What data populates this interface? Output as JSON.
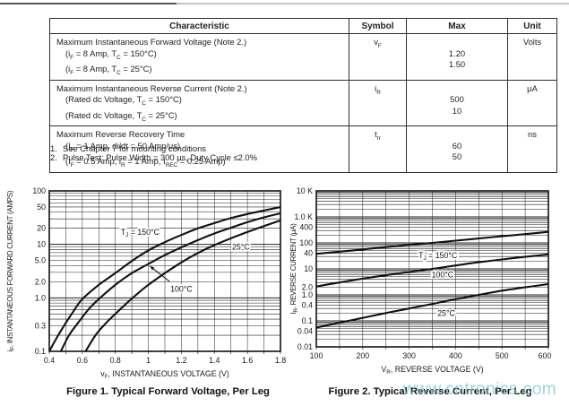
{
  "table": {
    "headers": [
      "Characteristic",
      "Symbol",
      "Max",
      "Unit"
    ],
    "rows": [
      {
        "characteristic": [
          {
            "segs": [
              {
                "t": "Maximum Instantaneous Forward Voltage (Note 2.)"
              }
            ]
          },
          {
            "segs": [
              {
                "t": "(i"
              },
              {
                "s": "F"
              },
              {
                "t": " = 8 Amp, T"
              },
              {
                "s": "C"
              },
              {
                "t": " = 150°C)"
              }
            ]
          },
          {
            "segs": [
              {
                "t": "(i"
              },
              {
                "s": "F"
              },
              {
                "t": " = 8 Amp, T"
              },
              {
                "s": "C"
              },
              {
                "t": " = 25°C)"
              }
            ]
          }
        ],
        "symbol": {
          "segs": [
            {
              "t": "v"
            },
            {
              "s": "F"
            }
          ]
        },
        "max": [
          "",
          "1.20",
          "1.50"
        ],
        "unit": "Volts"
      },
      {
        "characteristic": [
          {
            "segs": [
              {
                "t": "Maximum Instantaneous Reverse Current (Note 2.)"
              }
            ]
          },
          {
            "segs": [
              {
                "t": "(Rated dc Voltage, T"
              },
              {
                "s": "C"
              },
              {
                "t": " = 150°C)"
              }
            ]
          },
          {
            "segs": [
              {
                "t": "(Rated dc Voltage, T"
              },
              {
                "s": "C"
              },
              {
                "t": " = 25°C)"
              }
            ]
          }
        ],
        "symbol": {
          "segs": [
            {
              "t": "i"
            },
            {
              "s": "R"
            }
          ]
        },
        "max": [
          "",
          "500",
          "10"
        ],
        "unit": "μA"
      },
      {
        "characteristic": [
          {
            "segs": [
              {
                "t": "Maximum Reverse Recovery Time"
              }
            ]
          },
          {
            "segs": [
              {
                "t": "(I"
              },
              {
                "s": "F"
              },
              {
                "t": " = 1 Amp, di/dt = 50 Amp/μs)"
              }
            ]
          },
          {
            "segs": [
              {
                "t": "(I"
              },
              {
                "s": "F"
              },
              {
                "t": " = 0.5 Amp, i"
              },
              {
                "s": "R"
              },
              {
                "t": " = 1 Amp, I"
              },
              {
                "s": "REC"
              },
              {
                "t": " = 0.25 Amp)"
              }
            ]
          }
        ],
        "symbol": {
          "segs": [
            {
              "t": "t"
            },
            {
              "s": "rr"
            }
          ]
        },
        "max": [
          "",
          "60",
          "50"
        ],
        "unit": "ns"
      }
    ]
  },
  "notes": [
    {
      "num": "1.",
      "text": "See Chapter 7 for mounting conditions"
    },
    {
      "num": "2.",
      "text": "Pulse Test: Pulse Width = 300 μs, Duty Cycle ≤2.0%"
    }
  ],
  "watermark": {
    "text": "www.cntronics.com",
    "color": "#74c7d4"
  },
  "chart_data": [
    {
      "type": "line",
      "title": "Figure 1. Typical Forward Voltage, Per Leg",
      "xlabel_segs": [
        {
          "t": "v"
        },
        {
          "s": "F"
        },
        {
          "t": ", INSTANTANEOUS VOLTAGE (V)"
        }
      ],
      "ylabel_segs": [
        {
          "t": "i"
        },
        {
          "s": "F"
        },
        {
          "t": ", INSTANTANEOUS FORWARD CURRENT (AMPS)"
        }
      ],
      "x_scale": "linear",
      "y_scale": "log",
      "xlim": [
        0.4,
        1.8
      ],
      "ylim": [
        0.1,
        100
      ],
      "x_grid_step": 0.1,
      "grid": true,
      "xticks": [
        {
          "v": 0.4,
          "label": "0.4"
        },
        {
          "v": 0.6,
          "label": "0.6"
        },
        {
          "v": 0.8,
          "label": "0.8"
        },
        {
          "v": 1.0,
          "label": "1"
        },
        {
          "v": 1.2,
          "label": "1.2"
        },
        {
          "v": 1.4,
          "label": "1.4"
        },
        {
          "v": 1.6,
          "label": "1.6"
        },
        {
          "v": 1.8,
          "label": "1.8"
        }
      ],
      "yticks": [
        {
          "v": 100,
          "label": "100"
        },
        {
          "v": 50,
          "label": "50"
        },
        {
          "v": 20,
          "label": "20"
        },
        {
          "v": 10,
          "label": "10"
        },
        {
          "v": 5,
          "label": "5.0"
        },
        {
          "v": 2,
          "label": "2.0"
        },
        {
          "v": 1,
          "label": "1.0"
        },
        {
          "v": 0.3,
          "label": "0.3"
        },
        {
          "v": 0.1,
          "label": "0.1"
        }
      ],
      "series": [
        {
          "name": "TJ = 150°C",
          "points": [
            [
              0.4,
              0.1
            ],
            [
              0.45,
              0.19
            ],
            [
              0.5,
              0.34
            ],
            [
              0.55,
              0.58
            ],
            [
              0.6,
              0.95
            ],
            [
              0.7,
              1.75
            ],
            [
              0.8,
              2.9
            ],
            [
              0.9,
              4.9
            ],
            [
              1.0,
              7.7
            ],
            [
              1.1,
              11
            ],
            [
              1.2,
              15
            ],
            [
              1.3,
              20
            ],
            [
              1.4,
              25
            ],
            [
              1.5,
              31
            ],
            [
              1.6,
              37
            ],
            [
              1.7,
              43
            ],
            [
              1.8,
              50
            ]
          ]
        },
        {
          "name": "100°C",
          "points": [
            [
              0.47,
              0.1
            ],
            [
              0.52,
              0.2
            ],
            [
              0.58,
              0.36
            ],
            [
              0.64,
              0.62
            ],
            [
              0.7,
              0.95
            ],
            [
              0.8,
              1.75
            ],
            [
              0.9,
              2.9
            ],
            [
              1.0,
              4.3
            ],
            [
              1.1,
              6.3
            ],
            [
              1.2,
              8.8
            ],
            [
              1.3,
              12
            ],
            [
              1.4,
              16
            ],
            [
              1.5,
              20.5
            ],
            [
              1.6,
              26
            ],
            [
              1.7,
              32
            ],
            [
              1.8,
              38
            ]
          ]
        },
        {
          "name": "25°C",
          "points": [
            [
              0.62,
              0.1
            ],
            [
              0.68,
              0.2
            ],
            [
              0.74,
              0.33
            ],
            [
              0.8,
              0.5
            ],
            [
              0.86,
              0.75
            ],
            [
              0.92,
              1.1
            ],
            [
              1.0,
              1.75
            ],
            [
              1.1,
              2.9
            ],
            [
              1.2,
              4.6
            ],
            [
              1.3,
              6.9
            ],
            [
              1.4,
              9.7
            ],
            [
              1.5,
              13
            ],
            [
              1.6,
              17
            ],
            [
              1.7,
              22
            ],
            [
              1.8,
              28
            ]
          ]
        }
      ],
      "annotations": [
        {
          "segs": [
            {
              "t": "T"
            },
            {
              "s": "J"
            },
            {
              "t": " = 150°C"
            }
          ],
          "x": 0.95,
          "y": 17
        },
        {
          "segs": [
            {
              "t": "25°C"
            }
          ],
          "x": 1.56,
          "y": 9
        },
        {
          "segs": [
            {
              "t": "100°C"
            }
          ],
          "x": 1.2,
          "y": 1.45,
          "arrow": {
            "x1": 1.13,
            "y1": 2.0,
            "x2": 1.01,
            "y2": 3.9
          }
        }
      ]
    },
    {
      "type": "line",
      "title": "Figure 2. Typical Reverse Current, Per Leg",
      "xlabel_segs": [
        {
          "t": "V"
        },
        {
          "s": "R"
        },
        {
          "t": ", REVERSE VOLTAGE (V)"
        }
      ],
      "ylabel_segs": [
        {
          "t": "I"
        },
        {
          "s": "R"
        },
        {
          "t": ", REVERSE CURRENT (μA)"
        }
      ],
      "x_scale": "linear",
      "y_scale": "log",
      "xlim": [
        100,
        600
      ],
      "ylim": [
        0.01,
        10000
      ],
      "x_grid_step": 50,
      "grid": true,
      "xticks": [
        {
          "v": 100,
          "label": "100"
        },
        {
          "v": 200,
          "label": "200"
        },
        {
          "v": 300,
          "label": "300"
        },
        {
          "v": 400,
          "label": "400"
        },
        {
          "v": 500,
          "label": "500"
        },
        {
          "v": 600,
          "label": "600",
          "dx": -4
        }
      ],
      "yticks": [
        {
          "v": 10000,
          "label": "10 K"
        },
        {
          "v": 1000,
          "label": "1.0 K"
        },
        {
          "v": 400,
          "label": "400"
        },
        {
          "v": 100,
          "label": "100"
        },
        {
          "v": 40,
          "label": "40"
        },
        {
          "v": 10,
          "label": "10"
        },
        {
          "v": 2,
          "label": "2.0"
        },
        {
          "v": 1,
          "label": "1.0"
        },
        {
          "v": 0.4,
          "label": "0.4"
        },
        {
          "v": 0.1,
          "label": "0.1"
        },
        {
          "v": 0.04,
          "label": "0.04"
        },
        {
          "v": 0.01,
          "label": "0.01"
        }
      ],
      "series": [
        {
          "name": "TJ = 150°C",
          "points": [
            [
              100,
              38
            ],
            [
              150,
              46
            ],
            [
              200,
              56
            ],
            [
              250,
              69
            ],
            [
              300,
              84
            ],
            [
              350,
              100
            ],
            [
              400,
              122
            ],
            [
              450,
              148
            ],
            [
              500,
              180
            ],
            [
              550,
              218
            ],
            [
              600,
              265
            ]
          ]
        },
        {
          "name": "100°C",
          "points": [
            [
              100,
              2.1
            ],
            [
              150,
              3.0
            ],
            [
              200,
              4.2
            ],
            [
              250,
              5.7
            ],
            [
              300,
              7.6
            ],
            [
              350,
              10
            ],
            [
              400,
              13.5
            ],
            [
              450,
              18
            ],
            [
              500,
              23
            ],
            [
              550,
              29
            ],
            [
              600,
              36
            ]
          ]
        },
        {
          "name": "25°C",
          "points": [
            [
              100,
              0.055
            ],
            [
              150,
              0.085
            ],
            [
              200,
              0.13
            ],
            [
              250,
              0.2
            ],
            [
              300,
              0.3
            ],
            [
              350,
              0.45
            ],
            [
              400,
              0.68
            ],
            [
              450,
              1.0
            ],
            [
              500,
              1.45
            ],
            [
              550,
              1.95
            ],
            [
              600,
              2.6
            ]
          ]
        }
      ],
      "annotations": [
        {
          "segs": [
            {
              "t": "T"
            },
            {
              "s": "J"
            },
            {
              "t": " = 150°C"
            }
          ],
          "x": 362,
          "y": 33
        },
        {
          "segs": [
            {
              "t": "100°C"
            }
          ],
          "x": 372,
          "y": 6.0
        },
        {
          "segs": [
            {
              "t": "25°C"
            }
          ],
          "x": 380,
          "y": 0.2
        }
      ]
    }
  ]
}
